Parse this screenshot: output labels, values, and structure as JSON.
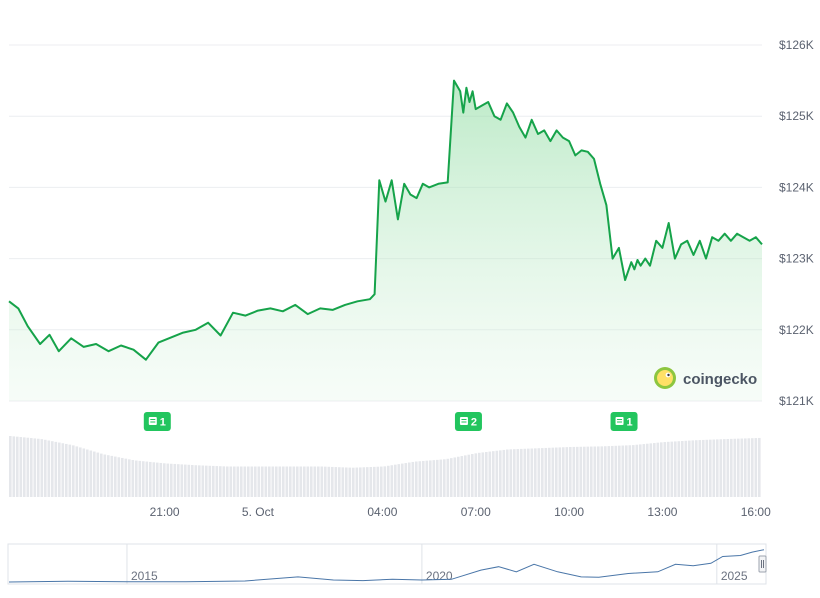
{
  "brand": {
    "name": "coingecko"
  },
  "colors": {
    "line": "#16a34a",
    "area_top": "#bfe9c9",
    "volume": "#e5e7eb",
    "marker": "#22c55e",
    "navigator_line": "#4a76a8"
  },
  "news_markers": [
    {
      "time": 20.75,
      "count": "1"
    },
    {
      "time": 6.75,
      "count": "2"
    },
    {
      "time": 11.75,
      "count": "1"
    }
  ],
  "chart_data": {
    "type": "area",
    "title": "",
    "xlabel": "",
    "ylabel": "",
    "y_axis_position": "right",
    "grid": true,
    "ylim": [
      121000,
      126000
    ],
    "yticks": [
      {
        "value": 126000,
        "label": "$126K"
      },
      {
        "value": 125000,
        "label": "$125K"
      },
      {
        "value": 124000,
        "label": "$124K"
      },
      {
        "value": 123000,
        "label": "$123K"
      },
      {
        "value": 122000,
        "label": "$122K"
      },
      {
        "value": 121000,
        "label": "$121K"
      }
    ],
    "xlim_hours_from_oct4_midnight": [
      16.0,
      40.2
    ],
    "xticks": [
      {
        "hour": 21,
        "label": "21:00"
      },
      {
        "hour": 24,
        "label": "5. Oct"
      },
      {
        "hour": 28,
        "label": "04:00"
      },
      {
        "hour": 31,
        "label": "07:00"
      },
      {
        "hour": 34,
        "label": "10:00"
      },
      {
        "hour": 37,
        "label": "13:00"
      },
      {
        "hour": 40,
        "label": "16:00"
      }
    ],
    "series": [
      {
        "hours": [
          16.0,
          16.3,
          16.6,
          17.0,
          17.3,
          17.6,
          18.0,
          18.4,
          18.8,
          19.2,
          19.6,
          20.0,
          20.4,
          20.8,
          21.2,
          21.6,
          22.0,
          22.4,
          22.8,
          23.2,
          23.6,
          24.0,
          24.4,
          24.8,
          25.2,
          25.6,
          26.0,
          26.4,
          26.8,
          27.2,
          27.6,
          27.75,
          27.9,
          28.1,
          28.3,
          28.5,
          28.7,
          28.9,
          29.1,
          29.3,
          29.5,
          29.8,
          30.1,
          30.3,
          30.5,
          30.6,
          30.7,
          30.8,
          30.9,
          31.0,
          31.2,
          31.4,
          31.6,
          31.8,
          32.0,
          32.2,
          32.4,
          32.6,
          32.8,
          33.0,
          33.2,
          33.4,
          33.6,
          33.8,
          34.0,
          34.2,
          34.4,
          34.6,
          34.8,
          35.0,
          35.2,
          35.4,
          35.6,
          35.8,
          36.0,
          36.1,
          36.2,
          36.3,
          36.45,
          36.6,
          36.8,
          37.0,
          37.2,
          37.4,
          37.6,
          37.8,
          38.0,
          38.2,
          38.4,
          38.6,
          38.8,
          39.0,
          39.2,
          39.4,
          39.6,
          39.8,
          40.0,
          40.2
        ],
        "values": [
          122400,
          122300,
          122050,
          121800,
          121930,
          121700,
          121880,
          121760,
          121800,
          121700,
          121780,
          121720,
          121580,
          121820,
          121890,
          121960,
          122000,
          122100,
          121920,
          122240,
          122200,
          122270,
          122300,
          122260,
          122350,
          122220,
          122300,
          122280,
          122350,
          122400,
          122430,
          122500,
          124100,
          123800,
          124100,
          123550,
          124050,
          123900,
          123850,
          124050,
          124000,
          124050,
          124070,
          125500,
          125350,
          125050,
          125400,
          125200,
          125350,
          125100,
          125150,
          125200,
          125000,
          124950,
          125180,
          125050,
          124850,
          124700,
          124950,
          124750,
          124800,
          124650,
          124800,
          124700,
          124650,
          124450,
          124520,
          124500,
          124400,
          124050,
          123750,
          123000,
          123150,
          122700,
          122950,
          122850,
          122980,
          122900,
          123000,
          122900,
          123250,
          123150,
          123500,
          123000,
          123200,
          123250,
          123050,
          123250,
          123000,
          123300,
          123250,
          123350,
          123250,
          123350,
          123300,
          123250,
          123300,
          123200
        ]
      }
    ],
    "volume": {
      "hours": [
        16.0,
        17.0,
        18.0,
        19.0,
        20.0,
        21.0,
        22.0,
        23.0,
        24.0,
        25.0,
        26.0,
        27.0,
        28.0,
        29.0,
        30.0,
        31.0,
        32.0,
        33.0,
        34.0,
        35.0,
        36.0,
        37.0,
        38.0,
        39.0,
        40.2
      ],
      "values": [
        1.0,
        0.95,
        0.85,
        0.7,
        0.6,
        0.55,
        0.52,
        0.5,
        0.5,
        0.5,
        0.5,
        0.48,
        0.5,
        0.58,
        0.62,
        0.72,
        0.78,
        0.8,
        0.82,
        0.83,
        0.85,
        0.9,
        0.93,
        0.95,
        0.97
      ]
    },
    "navigator": {
      "year_labels": [
        "2015",
        "2020",
        "2025"
      ],
      "year_positions": [
        2015,
        2020,
        2025
      ],
      "range_years": [
        2013.0,
        2025.8
      ],
      "years": [
        2013.0,
        2014.0,
        2015.0,
        2016.0,
        2017.0,
        2017.9,
        2018.5,
        2019.0,
        2019.5,
        2020.0,
        2020.5,
        2021.0,
        2021.3,
        2021.6,
        2021.9,
        2022.3,
        2022.7,
        2023.0,
        2023.5,
        2024.0,
        2024.3,
        2024.6,
        2024.9,
        2025.1,
        2025.4,
        2025.6,
        2025.8
      ],
      "values": [
        0.0,
        0.02,
        0.01,
        0.01,
        0.03,
        0.15,
        0.06,
        0.04,
        0.08,
        0.06,
        0.08,
        0.35,
        0.45,
        0.3,
        0.52,
        0.3,
        0.15,
        0.14,
        0.25,
        0.3,
        0.52,
        0.48,
        0.55,
        0.75,
        0.78,
        0.88,
        0.95
      ]
    }
  }
}
